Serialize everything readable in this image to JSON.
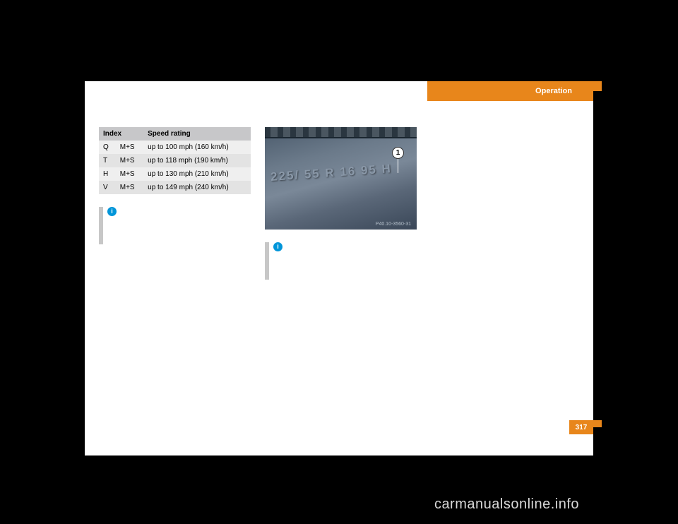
{
  "header": {
    "tab_label": "Operation"
  },
  "speed_table": {
    "headers": [
      "Index",
      "",
      "Speed rating"
    ],
    "rows": [
      [
        "Q",
        "M+S",
        "up to 100 mph (160 km/h)"
      ],
      [
        "T",
        "M+S",
        "up to 118 mph (190 km/h)"
      ],
      [
        "H",
        "M+S",
        "up to 130 mph (210 km/h)"
      ],
      [
        "V",
        "M+S",
        "up to 149 mph (240 km/h)"
      ]
    ],
    "header_bg": "#c7c7c9",
    "row_bg_odd": "#efefef",
    "row_bg_even": "#e3e3e3"
  },
  "tire_image": {
    "marking_text": "225/ 55 R 16 95 H",
    "callout_number": "1",
    "image_code": "P40.10-3560-31"
  },
  "info_icon_glyph": "i",
  "page_number": "317",
  "watermark": "carmanualsonline.info"
}
